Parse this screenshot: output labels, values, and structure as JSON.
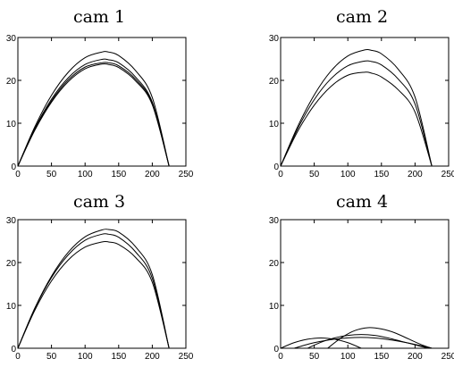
{
  "chart_data": [
    {
      "type": "line",
      "title": "cam 1",
      "xlim": [
        0,
        250
      ],
      "ylim": [
        0,
        30
      ],
      "xticks": [
        "0",
        "50",
        "100",
        "150",
        "200",
        "250"
      ],
      "yticks": [
        "0",
        "10",
        "20",
        "30"
      ],
      "series": [
        {
          "x": [
            0,
            25,
            50,
            75,
            100,
            125,
            135,
            150,
            175,
            200,
            225
          ],
          "y": [
            0,
            8.7,
            15.6,
            20.6,
            23.7,
            24.9,
            24.8,
            24.1,
            20.8,
            14.9,
            0
          ]
        },
        {
          "x": [
            0,
            25,
            50,
            75,
            100,
            125,
            135,
            150,
            175,
            200,
            225
          ],
          "y": [
            0,
            8.5,
            15.2,
            20.1,
            23.1,
            24.1,
            24.1,
            23.4,
            20.3,
            14.6,
            0
          ]
        },
        {
          "x": [
            0,
            25,
            50,
            75,
            100,
            125,
            135,
            150,
            175,
            200,
            225
          ],
          "y": [
            0,
            8.3,
            14.9,
            19.7,
            22.7,
            23.8,
            23.7,
            23.0,
            19.9,
            14.3,
            0
          ]
        },
        {
          "x": [
            0,
            25,
            50,
            75,
            100,
            125,
            135,
            150,
            175,
            200,
            225
          ],
          "y": [
            0,
            9.1,
            16.5,
            21.9,
            25.3,
            26.6,
            26.6,
            25.8,
            22.3,
            16.0,
            0
          ]
        }
      ]
    },
    {
      "type": "line",
      "title": "cam 2",
      "xlim": [
        0,
        250
      ],
      "ylim": [
        0,
        30
      ],
      "xticks": [
        "0",
        "50",
        "100",
        "150",
        "200",
        "250"
      ],
      "yticks": [
        "0",
        "10",
        "20",
        "30"
      ],
      "series": [
        {
          "x": [
            0,
            25,
            50,
            75,
            100,
            125,
            135,
            150,
            175,
            200,
            225
          ],
          "y": [
            0,
            9.1,
            16.6,
            22.2,
            25.7,
            27.1,
            27.0,
            26.2,
            22.6,
            16.1,
            0
          ]
        },
        {
          "x": [
            0,
            25,
            50,
            75,
            100,
            125,
            135,
            150,
            175,
            200,
            225
          ],
          "y": [
            0,
            8.6,
            15.5,
            20.4,
            23.4,
            24.5,
            24.4,
            23.6,
            20.3,
            14.5,
            0
          ]
        },
        {
          "x": [
            0,
            25,
            50,
            75,
            100,
            125,
            135,
            150,
            175,
            200,
            225
          ],
          "y": [
            0,
            8.0,
            14.2,
            18.6,
            21.2,
            21.9,
            21.7,
            20.8,
            17.8,
            12.6,
            0
          ]
        }
      ]
    },
    {
      "type": "line",
      "title": "cam 3",
      "xlim": [
        0,
        250
      ],
      "ylim": [
        0,
        30
      ],
      "xticks": [
        "0",
        "50",
        "100",
        "150",
        "200",
        "250"
      ],
      "yticks": [
        "0",
        "10",
        "20",
        "30"
      ],
      "series": [
        {
          "x": [
            0,
            25,
            50,
            75,
            100,
            125,
            135,
            150,
            175,
            200,
            225
          ],
          "y": [
            0,
            9.3,
            16.8,
            22.4,
            26.0,
            27.6,
            27.7,
            27.1,
            23.7,
            17.2,
            0
          ]
        },
        {
          "x": [
            0,
            25,
            50,
            75,
            100,
            125,
            135,
            150,
            175,
            200,
            225
          ],
          "y": [
            0,
            9.2,
            16.5,
            21.8,
            25.2,
            26.6,
            26.6,
            25.9,
            22.5,
            16.3,
            0
          ]
        },
        {
          "x": [
            0,
            25,
            50,
            75,
            100,
            125,
            135,
            150,
            175,
            200,
            225
          ],
          "y": [
            0,
            8.8,
            15.7,
            20.6,
            23.6,
            24.8,
            24.8,
            24.2,
            21.2,
            15.4,
            0
          ]
        }
      ]
    },
    {
      "type": "line",
      "title": "cam 4",
      "xlim": [
        0,
        250
      ],
      "ylim": [
        0,
        30
      ],
      "xticks": [
        "0",
        "50",
        "100",
        "150",
        "200",
        "250"
      ],
      "yticks": [
        "0",
        "10",
        "20",
        "30"
      ],
      "series": [
        {
          "x": [
            0,
            20,
            40,
            60,
            80,
            100,
            120
          ],
          "y": [
            0,
            1.3,
            2.1,
            2.4,
            2.1,
            1.3,
            0
          ]
        },
        {
          "x": [
            40,
            60,
            80,
            100,
            120,
            140,
            160,
            180,
            200,
            220
          ],
          "y": [
            0,
            1.4,
            2.4,
            3.0,
            3.2,
            3.0,
            2.4,
            1.6,
            0.8,
            0
          ]
        },
        {
          "x": [
            70,
            90,
            110,
            130,
            150,
            170,
            190,
            210,
            225
          ],
          "y": [
            0,
            2.4,
            4.1,
            4.8,
            4.5,
            3.6,
            2.2,
            0.8,
            0
          ]
        },
        {
          "x": [
            20,
            50,
            80,
            110,
            140,
            170,
            200,
            225
          ],
          "y": [
            0,
            1.3,
            2.1,
            2.5,
            2.4,
            1.8,
            0.9,
            0
          ]
        }
      ]
    }
  ]
}
